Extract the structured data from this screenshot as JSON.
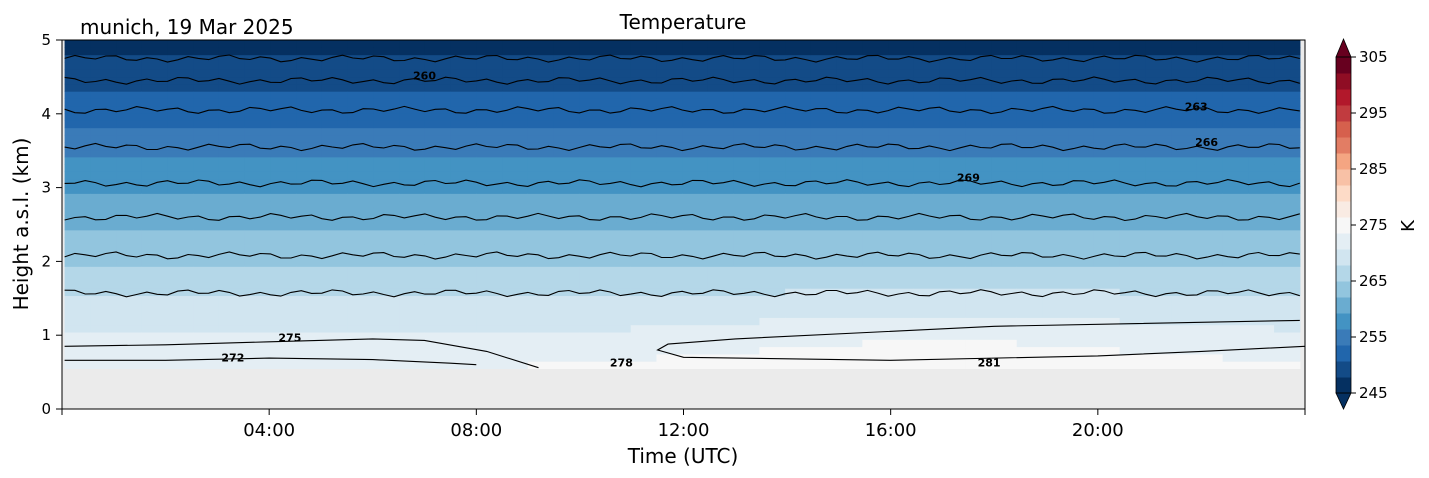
{
  "chart_data": {
    "type": "heatmap",
    "title": "Temperature",
    "subtitle": "munich, 19 Mar 2025",
    "xlabel": "Time (UTC)",
    "ylabel": "Height a.s.l. (km)",
    "xlim": [
      "00:00",
      "24:00"
    ],
    "ylim": [
      0,
      5
    ],
    "x_ticks": [
      "04:00",
      "08:00",
      "12:00",
      "16:00",
      "20:00"
    ],
    "x_tick_hours": [
      4,
      8,
      12,
      16,
      20
    ],
    "y_ticks": [
      "0",
      "1",
      "2",
      "3",
      "4",
      "5"
    ],
    "data_bottom_km": 0.55,
    "grid": false,
    "colorbar": {
      "label": "K",
      "min": 245,
      "max": 305,
      "ticks": [
        "245",
        "255",
        "265",
        "275",
        "285",
        "295",
        "305"
      ],
      "extend": "both",
      "colors": [
        "#053061",
        "#134b87",
        "#2166ac",
        "#3a7bb8",
        "#4393c3",
        "#6aacd0",
        "#92c5de",
        "#b4d7e8",
        "#d1e5f0",
        "#e4eef4",
        "#f7f7f7",
        "#f9ebe3",
        "#fddbc7",
        "#f8c1a6",
        "#f4a582",
        "#e27d64",
        "#d6604d",
        "#c13b3f",
        "#b2182b",
        "#8f0d24",
        "#67001f"
      ]
    },
    "contour_labels": [
      {
        "text": "260",
        "hour": 7.0,
        "km": 4.52
      },
      {
        "text": "263",
        "hour": 21.9,
        "km": 4.1
      },
      {
        "text": "266",
        "hour": 22.1,
        "km": 3.62
      },
      {
        "text": "269",
        "hour": 17.5,
        "km": 3.14
      },
      {
        "text": "272",
        "hour": 3.3,
        "km": 0.7
      },
      {
        "text": "275",
        "hour": 4.4,
        "km": 0.97
      },
      {
        "text": "278",
        "hour": 10.8,
        "km": 0.63
      },
      {
        "text": "281",
        "hour": 17.9,
        "km": 0.63
      }
    ],
    "isotherm_levels": [
      {
        "km": 4.75
      },
      {
        "km": 4.45
      },
      {
        "km": 4.05
      },
      {
        "km": 3.55
      },
      {
        "km": 3.06
      },
      {
        "km": 2.6
      },
      {
        "km": 2.08
      },
      {
        "km": 1.57
      }
    ],
    "approx_temperature_field": {
      "surface_K": 277,
      "lapse_K_per_km": 6.1,
      "afternoon_warming_K": 4,
      "peak_hour": 17
    }
  }
}
